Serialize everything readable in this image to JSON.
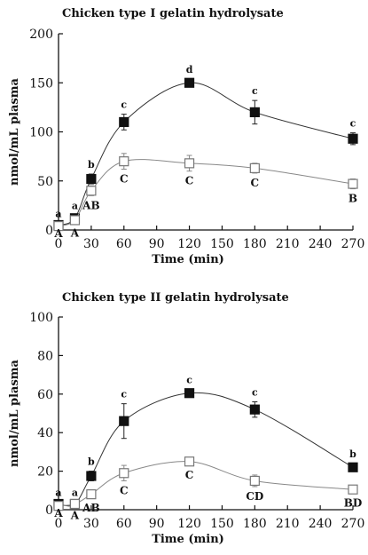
{
  "chart_data": [
    {
      "type": "line",
      "title": "Chicken type I gelatin hydrolysate",
      "xlabel": "Time (min)",
      "ylabel": "nmol/mL plasma",
      "xlim": [
        0,
        270
      ],
      "ylim": [
        0,
        200
      ],
      "xticks": [
        0,
        30,
        60,
        90,
        120,
        150,
        180,
        210,
        240,
        270
      ],
      "yticks": [
        0,
        50,
        100,
        150,
        200
      ],
      "series": [
        {
          "marker": "filled-square",
          "x": [
            0,
            15,
            30,
            60,
            120,
            180,
            270
          ],
          "values": [
            5,
            12,
            52,
            110,
            150,
            120,
            93
          ],
          "errors": [
            2,
            3,
            5,
            8,
            4,
            12,
            6
          ],
          "labels": [
            "a",
            "a",
            "b",
            "c",
            "d",
            "c",
            "c"
          ]
        },
        {
          "marker": "open-square",
          "x": [
            0,
            15,
            30,
            60,
            120,
            180,
            270
          ],
          "values": [
            4,
            10,
            40,
            70,
            68,
            63,
            47
          ],
          "errors": [
            2,
            3,
            5,
            8,
            8,
            5,
            5
          ],
          "labels": [
            "A",
            "A",
            "AB",
            "C",
            "C",
            "C",
            "B"
          ]
        }
      ]
    },
    {
      "type": "line",
      "title": "Chicken type II gelatin hydrolysate",
      "xlabel": "Time (min)",
      "ylabel": "nmol/mL plasma",
      "xlim": [
        0,
        270
      ],
      "ylim": [
        0,
        100
      ],
      "xticks": [
        0,
        30,
        60,
        90,
        120,
        150,
        180,
        210,
        240,
        270
      ],
      "yticks": [
        0,
        20,
        40,
        60,
        80,
        100
      ],
      "series": [
        {
          "marker": "filled-square",
          "x": [
            0,
            15,
            30,
            60,
            120,
            180,
            270
          ],
          "values": [
            3,
            3,
            17.5,
            46,
            60.5,
            52,
            22
          ],
          "errors": [
            1,
            1,
            2.5,
            9,
            2,
            4,
            2
          ],
          "labels": [
            "a",
            "a",
            "b",
            "c",
            "c",
            "c",
            "b"
          ]
        },
        {
          "marker": "open-square",
          "x": [
            0,
            15,
            30,
            60,
            120,
            180,
            270
          ],
          "values": [
            2,
            3,
            8,
            19,
            25,
            15,
            10.5
          ],
          "errors": [
            1,
            1,
            2,
            4,
            2,
            3,
            2
          ],
          "labels": [
            "A",
            "A",
            "AB",
            "C",
            "C",
            "CD",
            "BD"
          ]
        }
      ]
    }
  ]
}
